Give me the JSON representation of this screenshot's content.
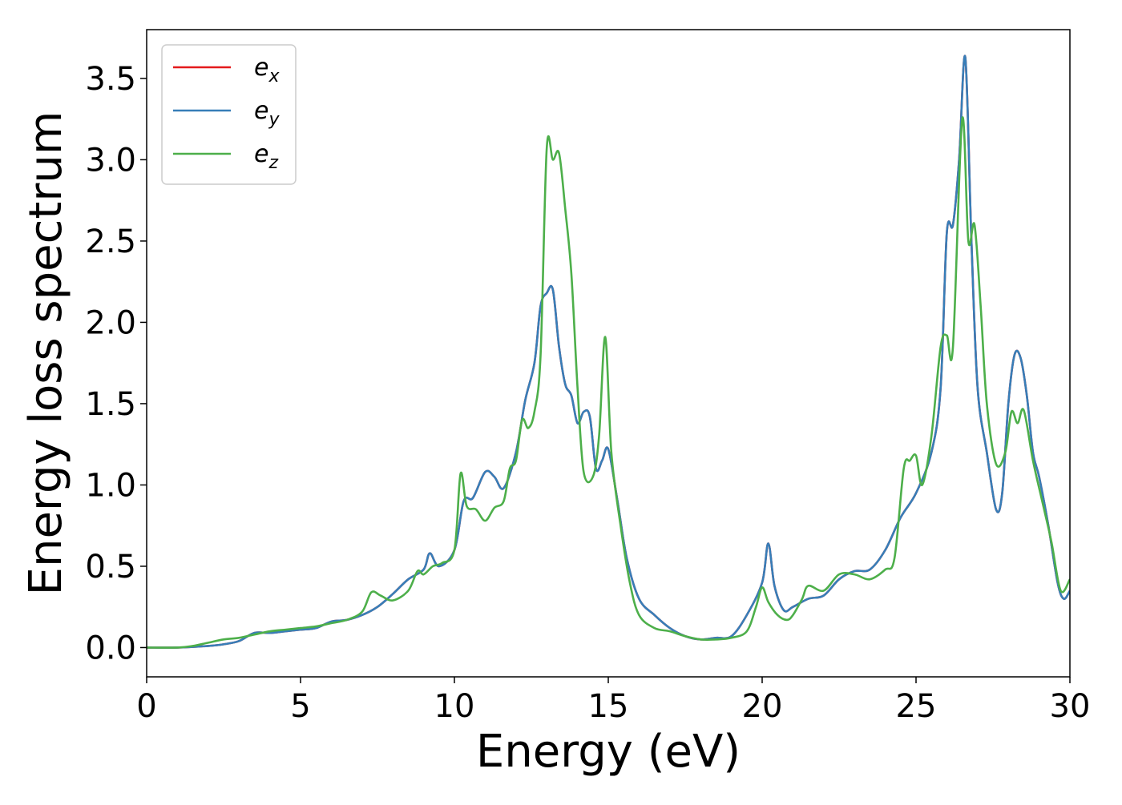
{
  "chart_data": {
    "type": "line",
    "xlabel": "Energy (eV)",
    "ylabel": "Energy loss spectrum",
    "xlim": [
      0,
      30
    ],
    "ylim": [
      -0.18,
      3.8
    ],
    "xticks": [
      0,
      5,
      10,
      15,
      20,
      25,
      30
    ],
    "xtick_labels": [
      "0",
      "5",
      "10",
      "15",
      "20",
      "25",
      "30"
    ],
    "yticks": [
      0.0,
      0.5,
      1.0,
      1.5,
      2.0,
      2.5,
      3.0,
      3.5
    ],
    "ytick_labels": [
      "0.0",
      "0.5",
      "1.0",
      "1.5",
      "2.0",
      "2.5",
      "3.0",
      "3.5"
    ],
    "grid": false,
    "legend_position": "top-left",
    "series": [
      {
        "name": "e",
        "subscript": "x",
        "color": "#e41a1c",
        "x": [
          0,
          1,
          2,
          2.5,
          3,
          3.5,
          4,
          4.5,
          5,
          5.5,
          6,
          6.5,
          7,
          7.5,
          8,
          8.5,
          9,
          9.2,
          9.5,
          10,
          10.3,
          10.6,
          11,
          11.3,
          11.6,
          12,
          12.3,
          12.6,
          12.8,
          13,
          13.2,
          13.4,
          13.6,
          13.8,
          14,
          14.2,
          14.4,
          14.6,
          14.8,
          15,
          15.3,
          15.6,
          16,
          16.5,
          17,
          17.5,
          18,
          18.5,
          19,
          19.5,
          20,
          20.2,
          20.4,
          20.7,
          21,
          21.5,
          22,
          22.5,
          23,
          23.5,
          24,
          24.5,
          25,
          25.5,
          25.8,
          26,
          26.2,
          26.4,
          26.6,
          26.8,
          27,
          27.3,
          27.6,
          27.8,
          28,
          28.2,
          28.4,
          28.6,
          28.8,
          29,
          29.3,
          29.6,
          29.8,
          30
        ],
        "y": [
          0,
          0,
          0.01,
          0.02,
          0.04,
          0.09,
          0.09,
          0.1,
          0.11,
          0.12,
          0.16,
          0.17,
          0.2,
          0.25,
          0.33,
          0.42,
          0.48,
          0.58,
          0.5,
          0.6,
          0.9,
          0.92,
          1.08,
          1.05,
          0.98,
          1.2,
          1.52,
          1.75,
          2.1,
          2.18,
          2.2,
          1.85,
          1.62,
          1.55,
          1.38,
          1.45,
          1.42,
          1.1,
          1.15,
          1.22,
          0.9,
          0.55,
          0.3,
          0.2,
          0.12,
          0.07,
          0.05,
          0.06,
          0.07,
          0.2,
          0.4,
          0.64,
          0.38,
          0.23,
          0.25,
          0.3,
          0.32,
          0.42,
          0.47,
          0.48,
          0.6,
          0.8,
          0.95,
          1.2,
          1.6,
          2.55,
          2.6,
          3.0,
          3.63,
          2.5,
          1.6,
          1.2,
          0.85,
          0.95,
          1.5,
          1.8,
          1.78,
          1.55,
          1.2,
          1.05,
          0.75,
          0.4,
          0.3,
          0.35
        ]
      },
      {
        "name": "e",
        "subscript": "y",
        "color": "#377eb8",
        "x": [
          0,
          1,
          2,
          2.5,
          3,
          3.5,
          4,
          4.5,
          5,
          5.5,
          6,
          6.5,
          7,
          7.5,
          8,
          8.5,
          9,
          9.2,
          9.5,
          10,
          10.3,
          10.6,
          11,
          11.3,
          11.6,
          12,
          12.3,
          12.6,
          12.8,
          13,
          13.2,
          13.4,
          13.6,
          13.8,
          14,
          14.2,
          14.4,
          14.6,
          14.8,
          15,
          15.3,
          15.6,
          16,
          16.5,
          17,
          17.5,
          18,
          18.5,
          19,
          19.5,
          20,
          20.2,
          20.4,
          20.7,
          21,
          21.5,
          22,
          22.5,
          23,
          23.5,
          24,
          24.5,
          25,
          25.5,
          25.8,
          26,
          26.2,
          26.4,
          26.6,
          26.8,
          27,
          27.3,
          27.6,
          27.8,
          28,
          28.2,
          28.4,
          28.6,
          28.8,
          29,
          29.3,
          29.6,
          29.8,
          30
        ],
        "y": [
          0,
          0,
          0.01,
          0.02,
          0.04,
          0.09,
          0.09,
          0.1,
          0.11,
          0.12,
          0.16,
          0.17,
          0.2,
          0.25,
          0.33,
          0.42,
          0.48,
          0.58,
          0.5,
          0.6,
          0.9,
          0.92,
          1.08,
          1.05,
          0.98,
          1.2,
          1.52,
          1.75,
          2.1,
          2.18,
          2.2,
          1.85,
          1.62,
          1.55,
          1.38,
          1.45,
          1.42,
          1.1,
          1.15,
          1.22,
          0.9,
          0.55,
          0.3,
          0.2,
          0.12,
          0.07,
          0.05,
          0.06,
          0.07,
          0.2,
          0.4,
          0.64,
          0.38,
          0.23,
          0.25,
          0.3,
          0.32,
          0.42,
          0.47,
          0.48,
          0.6,
          0.8,
          0.95,
          1.2,
          1.6,
          2.55,
          2.6,
          3.0,
          3.63,
          2.5,
          1.6,
          1.2,
          0.85,
          0.95,
          1.5,
          1.8,
          1.78,
          1.55,
          1.2,
          1.05,
          0.75,
          0.4,
          0.3,
          0.35
        ]
      },
      {
        "name": "e",
        "subscript": "z",
        "color": "#4daf4a",
        "x": [
          0,
          1,
          1.5,
          2,
          2.5,
          3,
          3.5,
          4,
          4.5,
          5,
          5.5,
          6,
          6.5,
          7,
          7.3,
          7.6,
          8,
          8.5,
          8.8,
          9,
          9.3,
          9.6,
          10,
          10.2,
          10.4,
          10.7,
          11,
          11.3,
          11.6,
          11.8,
          12,
          12.2,
          12.4,
          12.6,
          12.8,
          13,
          13.2,
          13.4,
          13.6,
          13.8,
          14,
          14.2,
          14.5,
          14.7,
          14.9,
          15.1,
          15.4,
          15.7,
          16,
          16.5,
          17,
          17.5,
          18,
          18.5,
          19,
          19.5,
          19.8,
          20,
          20.2,
          20.5,
          20.8,
          21,
          21.3,
          21.5,
          22,
          22.5,
          23,
          23.5,
          24,
          24.3,
          24.6,
          24.8,
          25,
          25.2,
          25.5,
          25.8,
          26,
          26.2,
          26.5,
          26.7,
          26.9,
          27.1,
          27.3,
          27.6,
          27.9,
          28.1,
          28.3,
          28.5,
          28.8,
          29.1,
          29.4,
          29.7,
          30
        ],
        "y": [
          0,
          0,
          0.01,
          0.03,
          0.05,
          0.06,
          0.08,
          0.1,
          0.11,
          0.12,
          0.13,
          0.15,
          0.17,
          0.22,
          0.34,
          0.32,
          0.29,
          0.35,
          0.47,
          0.45,
          0.5,
          0.52,
          0.6,
          1.07,
          0.87,
          0.85,
          0.78,
          0.86,
          0.9,
          1.1,
          1.15,
          1.4,
          1.35,
          1.45,
          1.8,
          3.07,
          3.0,
          3.04,
          2.7,
          2.3,
          1.6,
          1.08,
          1.05,
          1.3,
          1.91,
          1.2,
          0.75,
          0.4,
          0.2,
          0.12,
          0.1,
          0.07,
          0.05,
          0.05,
          0.06,
          0.1,
          0.25,
          0.37,
          0.28,
          0.2,
          0.17,
          0.2,
          0.3,
          0.38,
          0.35,
          0.45,
          0.45,
          0.42,
          0.48,
          0.55,
          1.1,
          1.15,
          1.18,
          1.0,
          1.3,
          1.85,
          1.92,
          1.85,
          3.25,
          2.5,
          2.6,
          2.1,
          1.5,
          1.13,
          1.2,
          1.45,
          1.38,
          1.46,
          1.15,
          0.9,
          0.65,
          0.35,
          0.42
        ]
      }
    ]
  }
}
